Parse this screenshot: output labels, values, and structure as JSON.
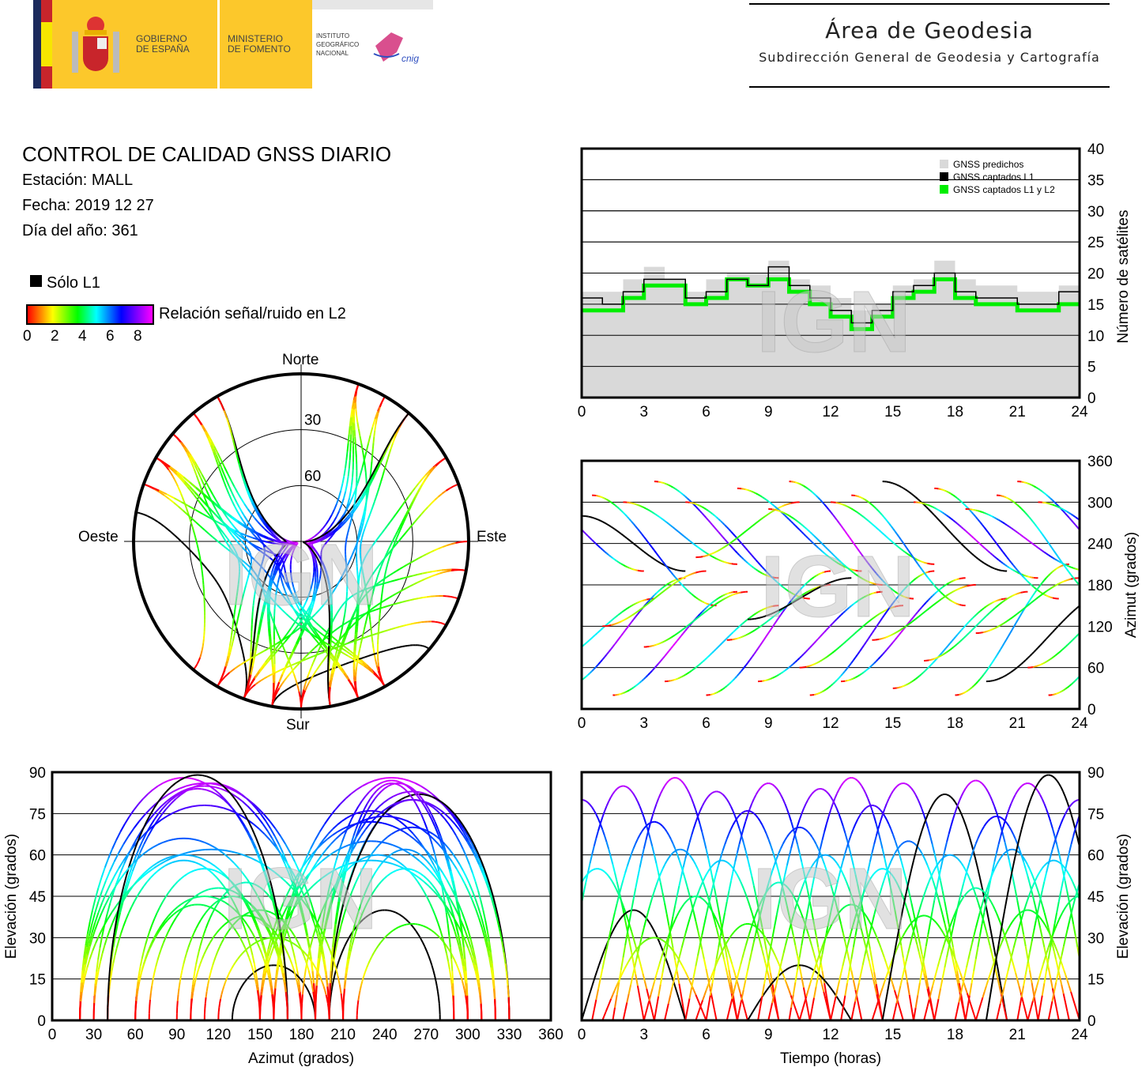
{
  "header": {
    "gov_line1": "GOBIERNO",
    "gov_line2": "DE ESPAÑA",
    "min_line1": "MINISTERIO",
    "min_line2": "DE FOMENTO",
    "ign_line1": "INSTITUTO",
    "ign_line2": "GEOGRÁFICO",
    "ign_line3": "NACIONAL",
    "cnig": "cnig",
    "area_title": "Área de Geodesia",
    "area_subtitle": "Subdirección General de Geodesia y Cartografía"
  },
  "report": {
    "title": "CONTROL DE CALIDAD GNSS DIARIO",
    "station": "Estación: MALL",
    "date": "Fecha: 2019 12 27",
    "doy": "Día del año: 361"
  },
  "legend": {
    "l1_only": "Sólo L1",
    "snr_label": "Relación señal/ruido en L2",
    "snr_ticks": [
      "0",
      "2",
      "4",
      "6",
      "8"
    ],
    "l1_color": "#000000"
  },
  "watermark": "IGN",
  "chart_data": [
    {
      "type": "polar",
      "name": "skyplot",
      "labels": {
        "north": "Norte",
        "south": "Sur",
        "west": "Oeste",
        "east": "Este"
      },
      "rings": [
        "30",
        "60"
      ]
    },
    {
      "type": "line",
      "name": "satellite-count",
      "xlabel": "",
      "ylabel": "Número de satélites",
      "xlim": [
        0,
        24
      ],
      "ylim": [
        0,
        40
      ],
      "xticks": [
        "0",
        "3",
        "6",
        "9",
        "12",
        "15",
        "18",
        "21",
        "24"
      ],
      "yticks": [
        "0",
        "5",
        "10",
        "15",
        "20",
        "25",
        "30",
        "35",
        "40"
      ],
      "legend": [
        "GNSS predichos",
        "GNSS captados L1",
        "GNSS captados L1 y L2"
      ],
      "legend_colors": [
        "#d9d9d9",
        "#000000",
        "#00ee00"
      ],
      "x": [
        0,
        1,
        2,
        3,
        4,
        5,
        6,
        7,
        8,
        9,
        10,
        11,
        12,
        13,
        14,
        15,
        16,
        17,
        18,
        19,
        20,
        21,
        22,
        23
      ],
      "series": [
        {
          "name": "GNSS predichos",
          "values": [
            17,
            17,
            19,
            21,
            19,
            17,
            19,
            20,
            20,
            22,
            19,
            18,
            16,
            14,
            15,
            18,
            19,
            22,
            19,
            18,
            18,
            17,
            17,
            18
          ]
        },
        {
          "name": "GNSS captados L1",
          "values": [
            16,
            15,
            17,
            19,
            19,
            16,
            17,
            19,
            18,
            21,
            18,
            16,
            14,
            12,
            14,
            17,
            18,
            20,
            17,
            16,
            16,
            15,
            15,
            17
          ]
        },
        {
          "name": "GNSS captados L1 y L2",
          "values": [
            14,
            14,
            16,
            18,
            18,
            15,
            16,
            19,
            18,
            19,
            17,
            15,
            13,
            11,
            13,
            16,
            17,
            19,
            16,
            15,
            15,
            14,
            14,
            15
          ]
        }
      ]
    },
    {
      "type": "line",
      "name": "azimuth-vs-time",
      "ylabel": "Azimut (grados)",
      "xlim": [
        0,
        24
      ],
      "ylim": [
        0,
        360
      ],
      "xticks": [
        "0",
        "3",
        "6",
        "9",
        "12",
        "15",
        "18",
        "21",
        "24"
      ],
      "yticks": [
        "0",
        "60",
        "120",
        "180",
        "240",
        "300",
        "360"
      ]
    },
    {
      "type": "line",
      "name": "elevation-vs-azimuth",
      "xlabel": "Azimut (grados)",
      "ylabel": "Elevación (grados)",
      "xlim": [
        0,
        360
      ],
      "ylim": [
        0,
        90
      ],
      "xticks": [
        "0",
        "30",
        "60",
        "90",
        "120",
        "150",
        "180",
        "210",
        "240",
        "270",
        "300",
        "330",
        "360"
      ],
      "yticks": [
        "0",
        "15",
        "30",
        "45",
        "60",
        "75",
        "90"
      ]
    },
    {
      "type": "line",
      "name": "elevation-vs-time",
      "xlabel": "Tiempo (horas)",
      "ylabel": "Elevación (grados)",
      "xlim": [
        0,
        24
      ],
      "ylim": [
        0,
        90
      ],
      "xticks": [
        "0",
        "3",
        "6",
        "9",
        "12",
        "15",
        "18",
        "21",
        "24"
      ],
      "yticks": [
        "0",
        "15",
        "30",
        "45",
        "60",
        "75",
        "90"
      ]
    },
    {
      "type": "passes",
      "fields": [
        "start_h",
        "duration_h",
        "max_elev",
        "az_rise",
        "az_set",
        "l1_only"
      ],
      "passes": [
        [
          -3,
          6,
          80,
          320,
          200,
          0
        ],
        [
          -2,
          5.5,
          55,
          60,
          160,
          0
        ],
        [
          -1,
          6,
          85,
          30,
          190,
          0
        ],
        [
          0,
          5,
          40,
          280,
          200,
          1
        ],
        [
          0.5,
          6,
          72,
          310,
          150,
          0
        ],
        [
          1,
          5,
          30,
          120,
          200,
          0
        ],
        [
          1.5,
          6,
          88,
          20,
          170,
          0
        ],
        [
          2,
          5.5,
          62,
          300,
          210,
          0
        ],
        [
          3,
          5,
          45,
          90,
          170,
          0
        ],
        [
          3.5,
          6,
          83,
          330,
          190,
          0
        ],
        [
          4,
          5.5,
          58,
          40,
          150,
          0
        ],
        [
          5,
          6,
          76,
          300,
          160,
          0
        ],
        [
          5.5,
          5,
          35,
          220,
          300,
          0
        ],
        [
          6,
          6,
          86,
          20,
          200,
          0
        ],
        [
          7,
          5,
          50,
          100,
          180,
          0
        ],
        [
          7.5,
          6,
          70,
          320,
          200,
          0
        ],
        [
          8,
          5,
          20,
          130,
          190,
          1
        ],
        [
          8.5,
          6,
          84,
          40,
          170,
          0
        ],
        [
          9,
          5.5,
          60,
          290,
          180,
          0
        ],
        [
          10,
          6,
          88,
          330,
          160,
          0
        ],
        [
          10.5,
          5,
          42,
          60,
          150,
          0
        ],
        [
          11,
          6,
          78,
          20,
          200,
          0
        ],
        [
          12,
          5,
          55,
          300,
          210,
          0
        ],
        [
          12.5,
          6,
          86,
          40,
          190,
          0
        ],
        [
          13,
          5.5,
          65,
          310,
          150,
          0
        ],
        [
          14,
          5,
          38,
          100,
          180,
          0
        ],
        [
          14.5,
          6,
          82,
          330,
          200,
          1
        ],
        [
          15,
          5.5,
          60,
          30,
          160,
          0
        ],
        [
          16,
          6,
          87,
          300,
          190,
          0
        ],
        [
          16.5,
          5,
          48,
          70,
          170,
          0
        ],
        [
          17,
          6,
          74,
          320,
          160,
          0
        ],
        [
          18,
          5.5,
          62,
          20,
          210,
          0
        ],
        [
          18.5,
          6,
          86,
          290,
          200,
          0
        ],
        [
          19,
          5,
          40,
          110,
          190,
          0
        ],
        [
          19.5,
          6,
          89,
          40,
          170,
          1
        ],
        [
          20,
          5.5,
          58,
          310,
          150,
          0
        ],
        [
          21,
          6,
          80,
          330,
          190,
          0
        ],
        [
          21.5,
          5,
          45,
          60,
          160,
          0
        ],
        [
          22,
          6,
          86,
          300,
          200,
          0
        ],
        [
          22.5,
          5.5,
          66,
          20,
          170,
          0
        ]
      ]
    }
  ]
}
